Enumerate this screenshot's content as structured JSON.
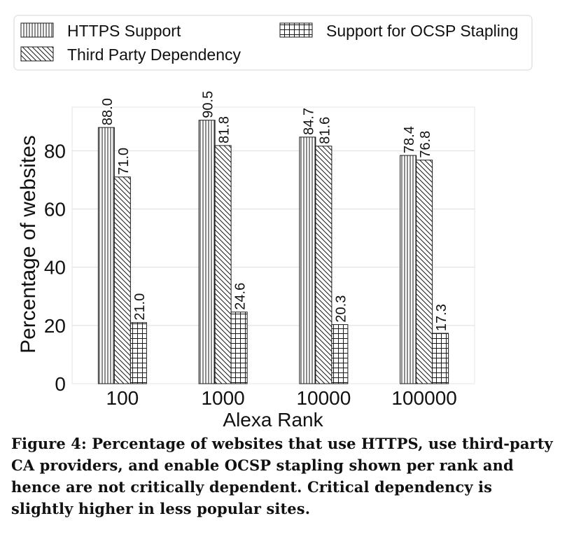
{
  "chart_data": {
    "type": "bar",
    "xlabel": "Alexa Rank",
    "ylabel": "Percentage of websites",
    "categories": [
      "100",
      "1000",
      "10000",
      "100000"
    ],
    "series": [
      {
        "name": "HTTPS Support",
        "values": [
          88.0,
          90.5,
          84.7,
          78.4
        ],
        "pattern": "vertical-lines"
      },
      {
        "name": "Third Party Dependency",
        "values": [
          71.0,
          81.8,
          81.6,
          76.8
        ],
        "pattern": "diagonal-lines"
      },
      {
        "name": "Support for OCSP Stapling",
        "values": [
          21.0,
          24.6,
          20.3,
          17.3
        ],
        "pattern": "grid"
      }
    ],
    "data_labels": [
      [
        "88.0",
        "90.5",
        "84.7",
        "78.4"
      ],
      [
        "71.0",
        "81.8",
        "81.6",
        "76.8"
      ],
      [
        "21.0",
        "24.6",
        "20.3",
        "17.3"
      ]
    ],
    "yticks": [
      "0",
      "20",
      "40",
      "60",
      "80"
    ],
    "ylim": [
      0,
      95
    ],
    "grid": true,
    "legend_position": "top"
  },
  "caption": {
    "label": "Figure 4:",
    "text": "Percentage of websites that use HTTPS, use third-party CA providers, and enable OCSP stapling shown per rank and hence are not critically dependent. Critical dependency is slightly higher in less popular sites."
  },
  "colors": {
    "bar_fill": "#ffffff",
    "stroke": "#1a1a1a",
    "grid": "#dddddd"
  }
}
